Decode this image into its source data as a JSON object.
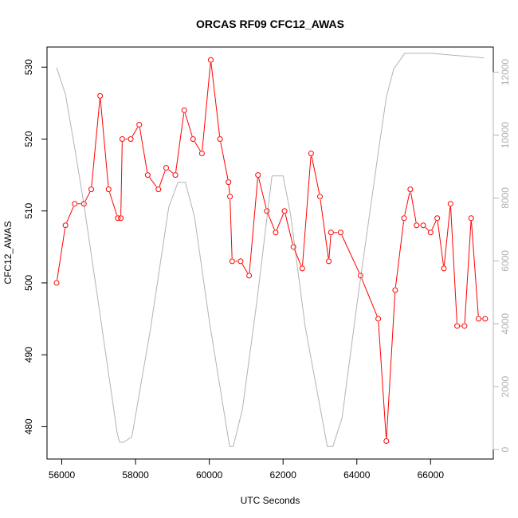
{
  "chart_data": {
    "type": "line",
    "title": "ORCAS RF09 CFC12_AWAS",
    "xlabel": "UTC Seconds",
    "ylabel": "CFC12_AWAS",
    "xlim": [
      55600,
      67700
    ],
    "ylim": [
      475.5,
      532.8
    ],
    "y2lim": [
      -300,
      12800
    ],
    "x_ticks": [
      56000,
      58000,
      60000,
      62000,
      64000,
      66000
    ],
    "y_ticks": [
      480,
      490,
      500,
      510,
      520,
      530
    ],
    "y2_ticks": [
      0,
      2000,
      4000,
      6000,
      8000,
      10000,
      12000
    ],
    "grid": false,
    "colors": {
      "primary": "#ff0000",
      "secondary": "#b3b3b3"
    },
    "series": [
      {
        "axis": "left",
        "style": "line+open-circles",
        "x": [
          55860,
          56100,
          56350,
          56600,
          56800,
          57040,
          57270,
          57520,
          57600,
          57640,
          57870,
          58100,
          58330,
          58620,
          58830,
          59080,
          59320,
          59560,
          59800,
          60040,
          60290,
          60520,
          60560,
          60620,
          60850,
          61080,
          61320,
          61560,
          61800,
          62040,
          62280,
          62520,
          62760,
          63000,
          63240,
          63300,
          63560,
          64100,
          64580,
          64800,
          65040,
          65280,
          65450,
          65620,
          65800,
          66000,
          66180,
          66360,
          66540,
          66720,
          66920,
          67100,
          67300,
          67480
        ],
        "y": [
          500,
          508,
          511,
          511,
          513,
          526,
          513,
          509,
          509,
          520,
          520,
          522,
          515,
          513,
          516,
          515,
          524,
          520,
          518,
          531,
          520,
          514,
          512,
          503,
          503,
          501,
          515,
          510,
          507,
          510,
          505,
          502,
          518,
          512,
          503,
          507,
          507,
          501,
          495,
          478,
          499,
          509,
          513,
          508,
          508,
          507,
          509,
          502,
          511,
          494,
          494,
          509,
          495,
          495
        ]
      },
      {
        "axis": "right",
        "style": "line",
        "x": [
          55860,
          56100,
          56350,
          56600,
          57000,
          57500,
          57560,
          57650,
          57900,
          58400,
          58900,
          59150,
          59350,
          59600,
          60000,
          60550,
          60650,
          60900,
          61300,
          61700,
          62000,
          62200,
          62600,
          63200,
          63350,
          63600,
          64000,
          64600,
          64800,
          65000,
          65300,
          65600,
          66000,
          66500,
          67000,
          67450
        ],
        "y": [
          12150,
          11300,
          9600,
          7800,
          4600,
          550,
          250,
          220,
          400,
          3800,
          7700,
          8500,
          8500,
          7400,
          4100,
          100,
          100,
          1300,
          4800,
          8700,
          8700,
          7500,
          3900,
          100,
          100,
          1000,
          4600,
          9600,
          11200,
          12100,
          12600,
          12600,
          12600,
          12550,
          12500,
          12450
        ]
      }
    ]
  }
}
